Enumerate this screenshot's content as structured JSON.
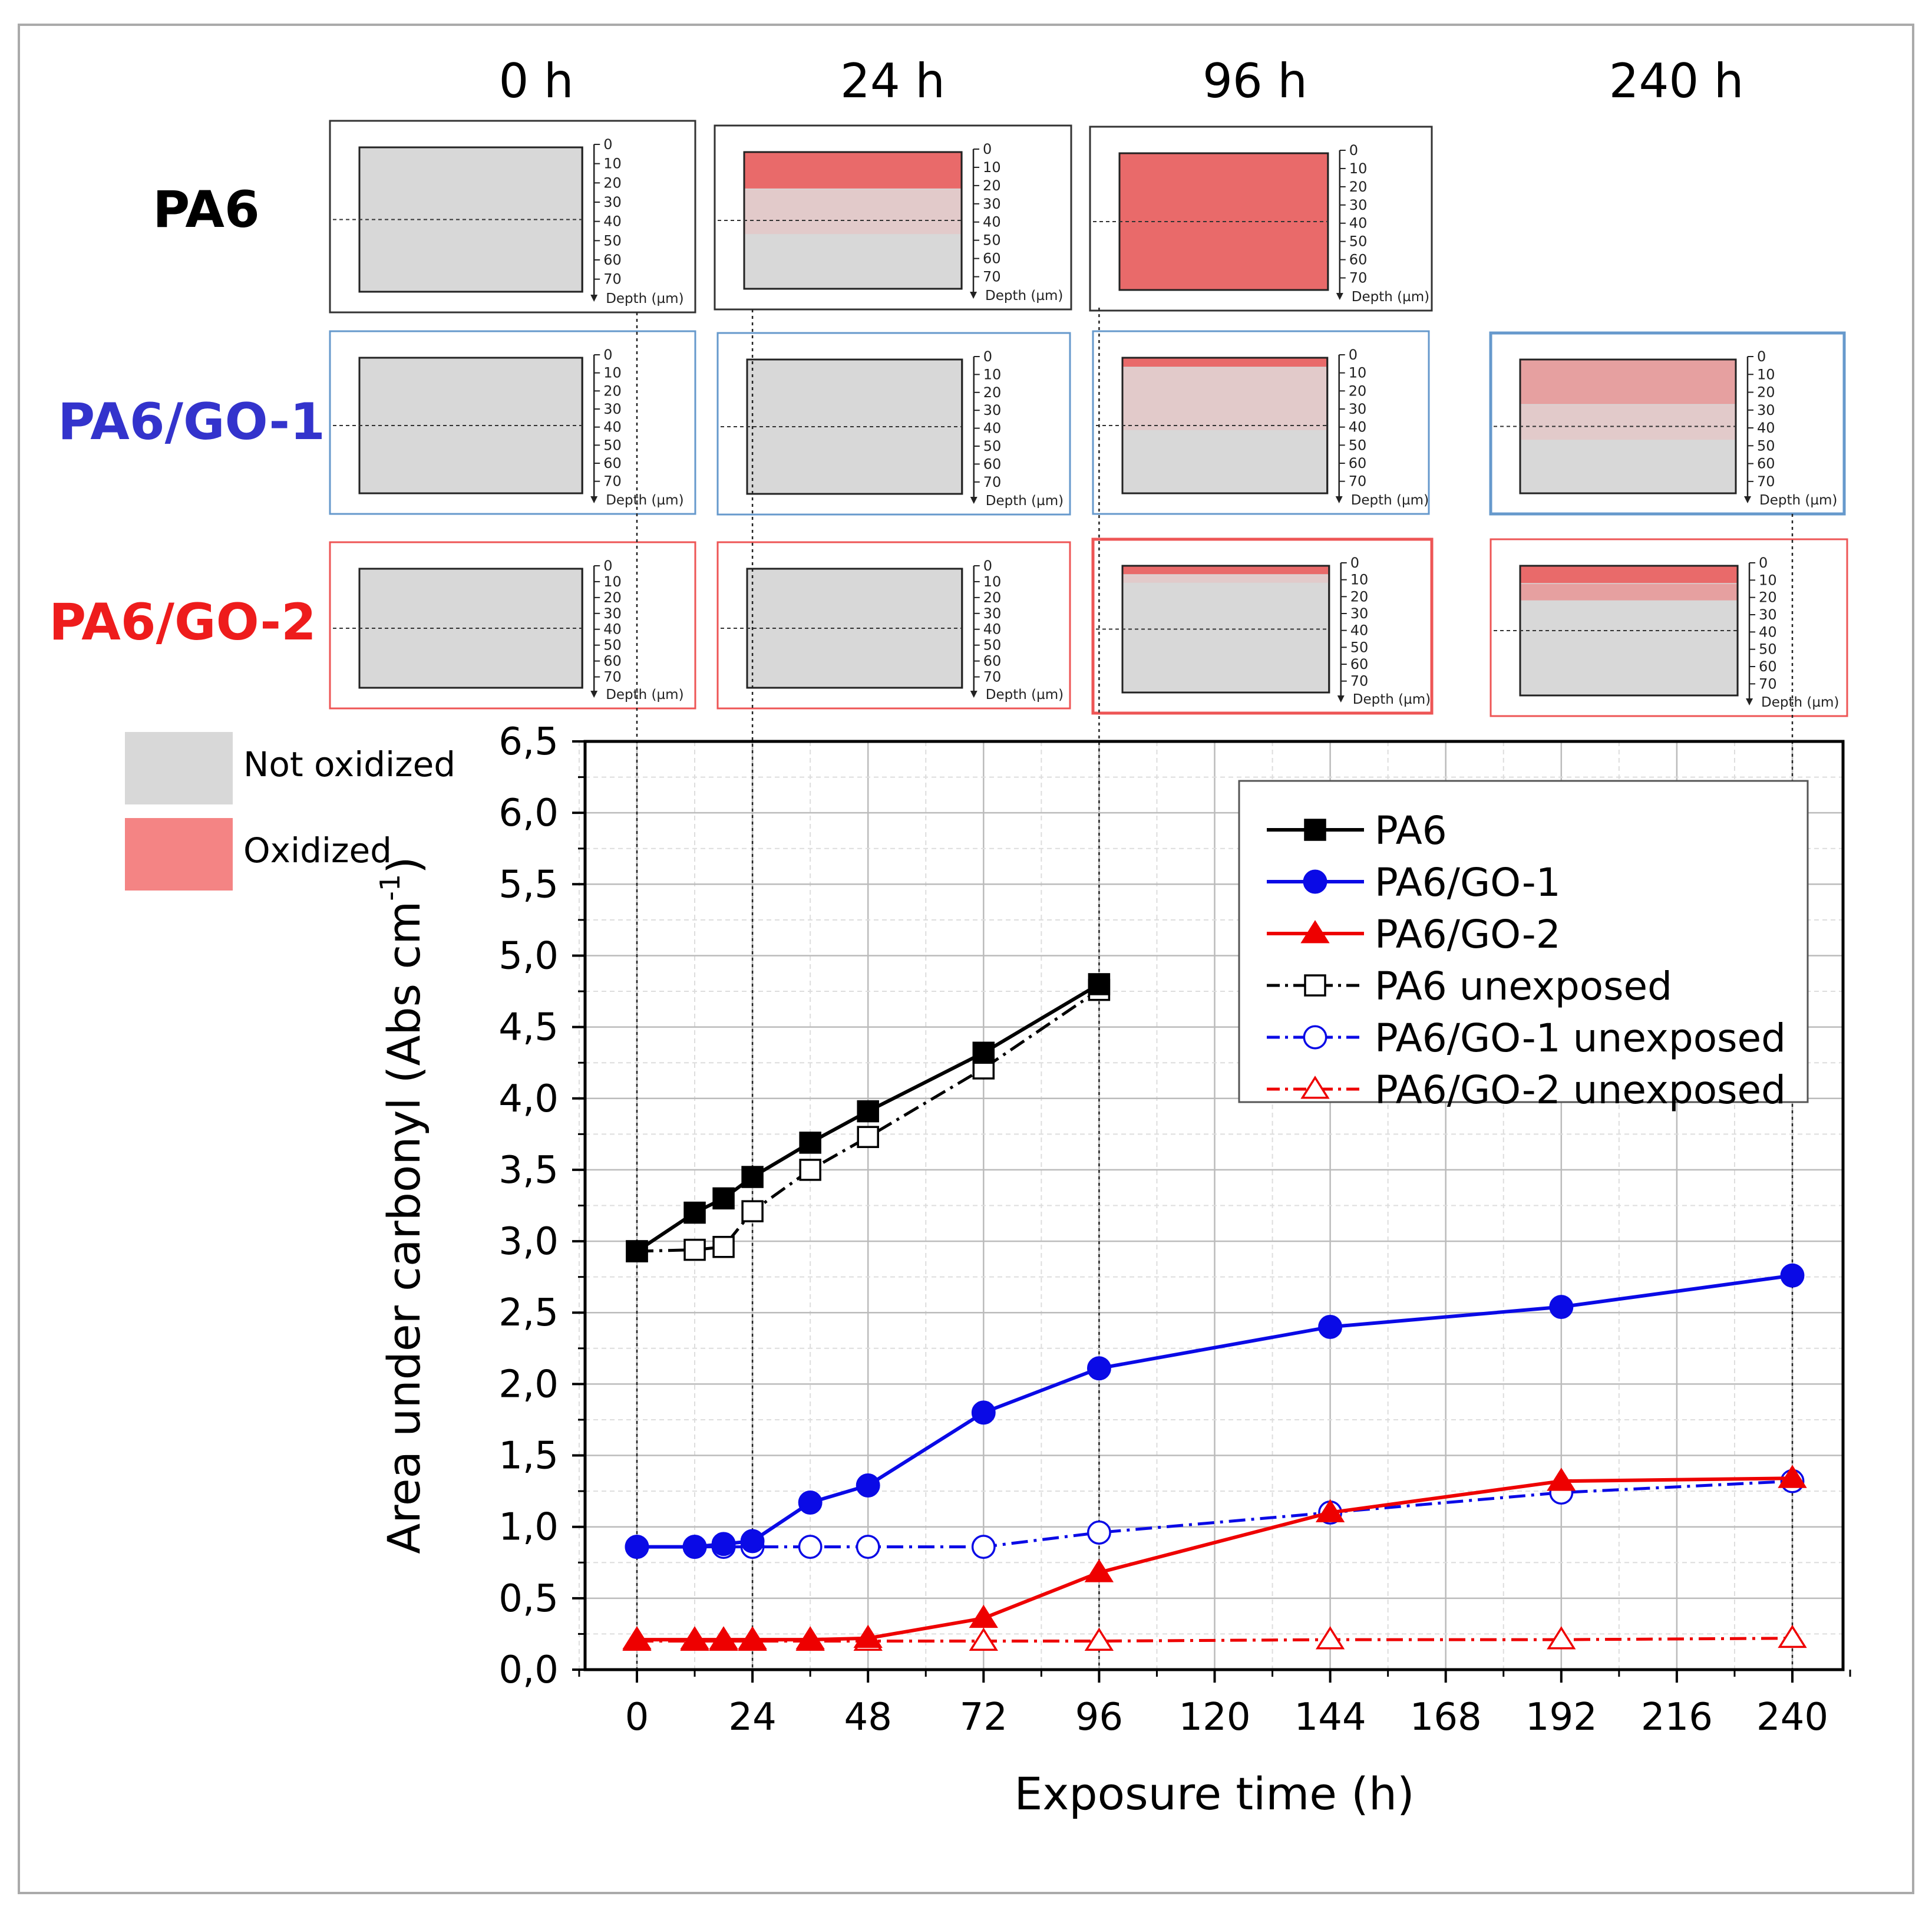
{
  "top_panels": {
    "time_headers": [
      "0 h",
      "24 h",
      "96 h",
      "240 h"
    ],
    "row_labels": [
      {
        "text": "PA6",
        "color": "#000000"
      },
      {
        "text": "PA6/GO-1",
        "color": "#3333cc"
      },
      {
        "text": "PA6/GO-2",
        "color": "#ee1c1c"
      }
    ],
    "depth_ticks": [
      "0",
      "10",
      "20",
      "30",
      "40",
      "50",
      "60",
      "70"
    ],
    "depth_label": "Depth (µm)",
    "panels": [
      {
        "row": 0,
        "col": 0,
        "oxidized_layers": []
      },
      {
        "row": 0,
        "col": 1,
        "oxidized_layers": [
          {
            "from_um": 0,
            "to_um": 20,
            "intensity": "strong"
          },
          {
            "from_um": 20,
            "to_um": 45,
            "intensity": "light"
          }
        ]
      },
      {
        "row": 0,
        "col": 2,
        "oxidized_layers": [
          {
            "from_um": 0,
            "to_um": 75,
            "intensity": "strong"
          }
        ]
      },
      {
        "row": 1,
        "col": 0,
        "oxidized_layers": []
      },
      {
        "row": 1,
        "col": 1,
        "oxidized_layers": []
      },
      {
        "row": 1,
        "col": 2,
        "oxidized_layers": [
          {
            "from_um": 0,
            "to_um": 5,
            "intensity": "strong"
          },
          {
            "from_um": 5,
            "to_um": 40,
            "intensity": "light"
          }
        ]
      },
      {
        "row": 1,
        "col": 3,
        "oxidized_layers": [
          {
            "from_um": 0,
            "to_um": 25,
            "intensity": "medium"
          },
          {
            "from_um": 25,
            "to_um": 45,
            "intensity": "light"
          }
        ]
      },
      {
        "row": 2,
        "col": 0,
        "oxidized_layers": []
      },
      {
        "row": 2,
        "col": 1,
        "oxidized_layers": []
      },
      {
        "row": 2,
        "col": 2,
        "oxidized_layers": [
          {
            "from_um": 0,
            "to_um": 5,
            "intensity": "strong"
          },
          {
            "from_um": 5,
            "to_um": 10,
            "intensity": "light"
          }
        ]
      },
      {
        "row": 2,
        "col": 3,
        "oxidized_layers": [
          {
            "from_um": 0,
            "to_um": 10,
            "intensity": "strong"
          },
          {
            "from_um": 10,
            "to_um": 20,
            "intensity": "medium"
          }
        ]
      }
    ]
  },
  "legend_boxes": [
    {
      "label": "Not oxidized",
      "color": "#d8d8d8"
    },
    {
      "label": "Oxidized",
      "color": "#f48484"
    }
  ],
  "colors": {
    "not_oxidized": "#d8d8d8",
    "oxidized_strong": "#e96a6a",
    "oxidized_medium": "#e6a0a0",
    "oxidized_light": "#e2caca"
  },
  "chart_data": {
    "type": "line",
    "title": "",
    "xlabel": "Exposure time (h)",
    "ylabel": "Area under carbonyl (Abs cm",
    "ylabel_sup": "-1",
    "ylabel_close": ")",
    "xlim": [
      -15,
      250
    ],
    "ylim": [
      0,
      6.5
    ],
    "x_ticks": [
      0,
      24,
      48,
      72,
      96,
      120,
      144,
      168,
      192,
      216,
      240
    ],
    "y_ticks": [
      "0,0",
      "0,5",
      "1,0",
      "1,5",
      "2,0",
      "2,5",
      "3,0",
      "3,5",
      "4,0",
      "4,5",
      "5,0",
      "5,5",
      "6,0",
      "6,5"
    ],
    "grid": true,
    "legend_position": "top-right",
    "series": [
      {
        "name": "PA6",
        "color": "#000000",
        "dash": "solid",
        "marker": "square",
        "filled": true,
        "x": [
          0,
          12,
          18,
          24,
          36,
          48,
          72,
          96
        ],
        "y": [
          2.93,
          3.2,
          3.3,
          3.45,
          3.69,
          3.91,
          4.32,
          4.8
        ]
      },
      {
        "name": "PA6/GO-1",
        "color": "#0a0ae6",
        "dash": "solid",
        "marker": "circle",
        "filled": true,
        "x": [
          0,
          12,
          18,
          24,
          36,
          48,
          72,
          96,
          144,
          192,
          240
        ],
        "y": [
          0.86,
          0.86,
          0.88,
          0.9,
          1.17,
          1.29,
          1.8,
          2.11,
          2.4,
          2.54,
          2.76
        ]
      },
      {
        "name": "PA6/GO-2",
        "color": "#ee0000",
        "dash": "solid",
        "marker": "triangle",
        "filled": true,
        "x": [
          0,
          12,
          18,
          24,
          36,
          48,
          72,
          96,
          144,
          192,
          240
        ],
        "y": [
          0.21,
          0.21,
          0.21,
          0.21,
          0.21,
          0.22,
          0.36,
          0.68,
          1.1,
          1.32,
          1.34
        ]
      },
      {
        "name": "PA6 unexposed",
        "color": "#000000",
        "dash": "dashdot",
        "marker": "square",
        "filled": false,
        "x": [
          0,
          12,
          18,
          24,
          36,
          48,
          72,
          96
        ],
        "y": [
          2.93,
          2.94,
          2.96,
          3.21,
          3.5,
          3.73,
          4.21,
          4.76
        ]
      },
      {
        "name": "PA6/GO-1 unexposed",
        "color": "#0a0ae6",
        "dash": "dashdot",
        "marker": "circle",
        "filled": false,
        "x": [
          0,
          12,
          18,
          24,
          36,
          48,
          72,
          96,
          144,
          192,
          240
        ],
        "y": [
          0.86,
          0.86,
          0.86,
          0.86,
          0.86,
          0.86,
          0.86,
          0.96,
          1.1,
          1.24,
          1.32
        ]
      },
      {
        "name": "PA6/GO-2 unexposed",
        "color": "#ee0000",
        "dash": "dashdot",
        "marker": "triangle",
        "filled": false,
        "x": [
          0,
          12,
          18,
          24,
          36,
          48,
          72,
          96,
          144,
          192,
          240
        ],
        "y": [
          0.2,
          0.2,
          0.2,
          0.2,
          0.2,
          0.2,
          0.2,
          0.2,
          0.21,
          0.21,
          0.22
        ]
      }
    ]
  }
}
